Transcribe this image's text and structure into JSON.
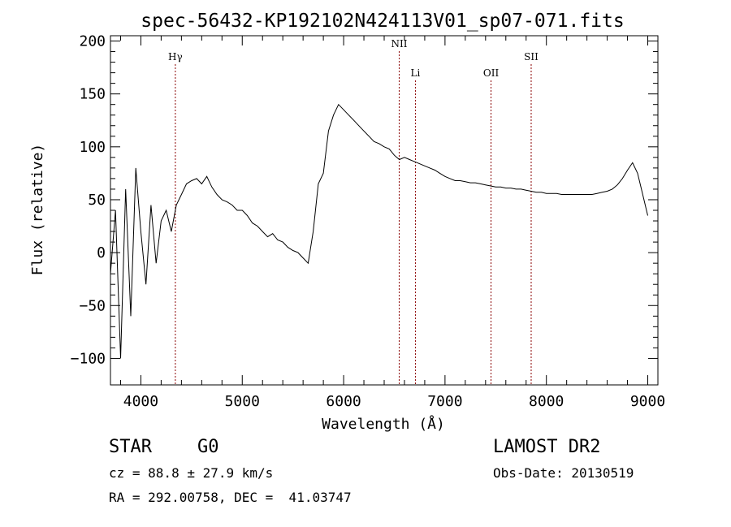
{
  "chart_data": {
    "type": "line",
    "title": "spec-56432-KP192102N424113V01_sp07-071.fits",
    "xlabel": "Wavelength (Å)",
    "ylabel": "Flux (relative)",
    "xlim": [
      3700,
      9100
    ],
    "ylim": [
      -125,
      205
    ],
    "x_ticks": [
      4000,
      5000,
      6000,
      7000,
      8000,
      9000
    ],
    "y_ticks": [
      -100,
      -50,
      0,
      50,
      100,
      150,
      200
    ],
    "x_tick_labels": [
      "4000",
      "5000",
      "6000",
      "7000",
      "8000",
      "9000"
    ],
    "y_tick_labels": [
      "−100",
      "−50",
      "0",
      "50",
      "100",
      "150",
      "200"
    ],
    "grid": false,
    "line_color": "#000000",
    "marker_color": "#8b0000",
    "lines": [
      {
        "label": "Hγ",
        "x": 4340
      },
      {
        "label": "NII",
        "x": 6548
      },
      {
        "label": "Li",
        "x": 6708
      },
      {
        "label": "OII",
        "x": 7454
      },
      {
        "label": "SII",
        "x": 7850
      }
    ],
    "series": [
      {
        "x": [
          3700,
          3750,
          3800,
          3850,
          3900,
          3950,
          4000,
          4050,
          4100,
          4150,
          4200,
          4250,
          4300,
          4350,
          4400,
          4450,
          4500,
          4550,
          4600,
          4650,
          4700,
          4750,
          4800,
          4850,
          4900,
          4950,
          5000,
          5050,
          5100,
          5150,
          5200,
          5250,
          5300,
          5350,
          5400,
          5450,
          5500,
          5550,
          5600,
          5650,
          5700,
          5750,
          5800,
          5850,
          5900,
          5950,
          6000,
          6050,
          6100,
          6150,
          6200,
          6250,
          6300,
          6350,
          6400,
          6450,
          6500,
          6550,
          6600,
          6650,
          6700,
          6750,
          6800,
          6850,
          6900,
          6950,
          7000,
          7050,
          7100,
          7150,
          7200,
          7250,
          7300,
          7350,
          7400,
          7450,
          7500,
          7550,
          7600,
          7650,
          7700,
          7750,
          7800,
          7850,
          7900,
          7950,
          8000,
          8050,
          8100,
          8150,
          8200,
          8250,
          8300,
          8350,
          8400,
          8450,
          8500,
          8550,
          8600,
          8650,
          8700,
          8750,
          8800,
          8850,
          8900,
          8950,
          9000
        ],
        "y": [
          -20,
          40,
          -100,
          60,
          -60,
          80,
          20,
          -30,
          45,
          -10,
          30,
          40,
          20,
          45,
          55,
          65,
          68,
          70,
          65,
          72,
          62,
          55,
          50,
          48,
          45,
          40,
          40,
          35,
          28,
          25,
          20,
          15,
          18,
          12,
          10,
          5,
          2,
          0,
          -5,
          -10,
          20,
          65,
          75,
          115,
          130,
          140,
          135,
          130,
          125,
          120,
          115,
          110,
          105,
          103,
          100,
          98,
          92,
          88,
          90,
          88,
          86,
          84,
          82,
          80,
          78,
          75,
          72,
          70,
          68,
          68,
          67,
          66,
          66,
          65,
          64,
          63,
          62,
          62,
          61,
          61,
          60,
          60,
          59,
          58,
          57,
          57,
          56,
          56,
          56,
          55,
          55,
          55,
          55,
          55,
          55,
          55,
          56,
          57,
          58,
          60,
          64,
          70,
          78,
          85,
          75,
          55,
          35
        ]
      }
    ]
  },
  "footer": {
    "object_class": "STAR",
    "subclass": "G0",
    "survey": "LAMOST DR2",
    "redshift": "cz = 88.8 ± 27.9 km/s",
    "obs_date": "Obs-Date: 20130519",
    "coords": "RA = 292.00758, DEC =  41.03747"
  }
}
